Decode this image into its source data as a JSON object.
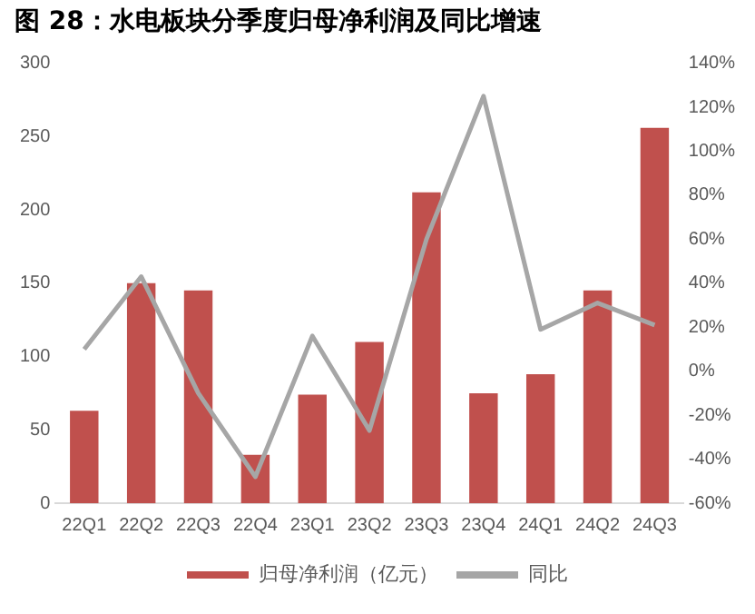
{
  "chart_data": {
    "type": "bar",
    "title": "图 28：水电板块分季度归母净利润及同比增速",
    "categories": [
      "22Q1",
      "22Q2",
      "22Q3",
      "22Q4",
      "23Q1",
      "23Q2",
      "23Q3",
      "23Q4",
      "24Q1",
      "24Q2",
      "24Q3"
    ],
    "series": [
      {
        "name": "归母净利润（亿元）",
        "color": "#c0504d",
        "values": [
          63,
          150,
          145,
          33,
          74,
          110,
          212,
          75,
          88,
          145,
          256
        ]
      },
      {
        "name": "同比",
        "type": "line",
        "axis": "y2",
        "color": "#a6a6a6",
        "values": [
          10,
          43,
          -10,
          -48,
          16,
          -27,
          60,
          125,
          19,
          31,
          21
        ]
      }
    ],
    "ylim": [
      0,
      300
    ],
    "yticks": [
      0,
      50,
      100,
      150,
      200,
      250,
      300
    ],
    "y2lim": [
      -60,
      140
    ],
    "y2ticks": [
      {
        "value": -60,
        "label": "-60%"
      },
      {
        "value": -40,
        "label": "-40%"
      },
      {
        "value": -20,
        "label": "-20%"
      },
      {
        "value": 0,
        "label": "0%"
      },
      {
        "value": 20,
        "label": "20%"
      },
      {
        "value": 40,
        "label": "40%"
      },
      {
        "value": 60,
        "label": "60%"
      },
      {
        "value": 80,
        "label": "80%"
      },
      {
        "value": 100,
        "label": "100%"
      },
      {
        "value": 120,
        "label": "120%"
      },
      {
        "value": 140,
        "label": "140%"
      }
    ],
    "grid": false,
    "legend": "bottom",
    "marker": "none"
  }
}
